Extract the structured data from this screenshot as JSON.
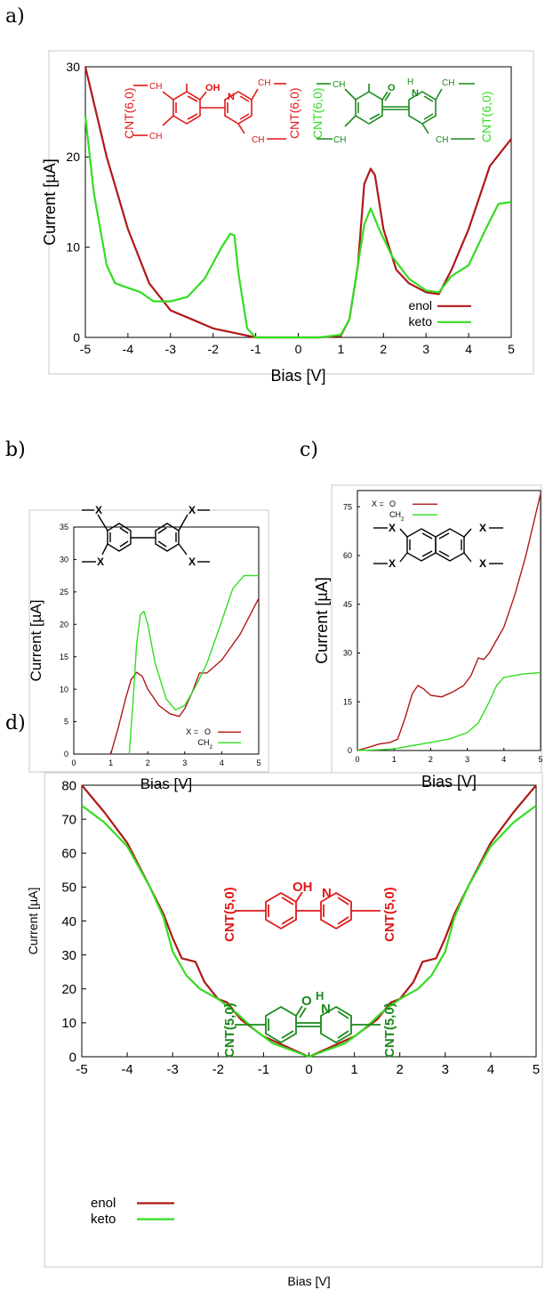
{
  "panel_labels": [
    "a)",
    "b)",
    "c)",
    "d)"
  ],
  "colors": {
    "enol": "#b01818",
    "keto": "#33dd22",
    "struct_red": "#e01818",
    "struct_green": "#1a8a1a",
    "struct_lightgreen": "#33dd22"
  },
  "chart_data": [
    {
      "id": "a",
      "type": "line",
      "xlabel": "Bias [V]",
      "ylabel": "Current [µA]",
      "xlim": [
        -5,
        5
      ],
      "ylim": [
        0,
        30
      ],
      "xticks": [
        -5,
        -4,
        -3,
        -2,
        -1,
        0,
        1,
        2,
        3,
        4,
        5
      ],
      "yticks": [
        0,
        10,
        20,
        30
      ],
      "legend": "bottom-right",
      "annotations": {
        "enol_left": "CNT(6,0)",
        "enol_right": "CNT(6,0)",
        "keto_left": "CNT(6,0)",
        "keto_right": "CNT(6,0)",
        "enol_ch2": "CH",
        "enol_oh": "OH",
        "enol_n": "N",
        "keto_o": "O",
        "keto_h": "H",
        "keto_n": "N",
        "sub2": "2"
      },
      "series": [
        {
          "name": "enol",
          "color": "#b01818",
          "x": [
            -5,
            -4.5,
            -4,
            -3.5,
            -3,
            -2.5,
            -2,
            -1.5,
            -1,
            -0.5,
            0,
            0.5,
            1,
            1.2,
            1.4,
            1.55,
            1.7,
            1.8,
            2,
            2.3,
            2.6,
            3,
            3.3,
            3.6,
            4,
            4.5,
            5
          ],
          "y": [
            30,
            20,
            12,
            6,
            3,
            2,
            1,
            0.5,
            0,
            0,
            0,
            0,
            0.2,
            2,
            8,
            17,
            18.7,
            18,
            12,
            7.5,
            6,
            5,
            4.8,
            7.5,
            12,
            19,
            22
          ]
        },
        {
          "name": "keto",
          "color": "#33dd22",
          "x": [
            -5,
            -4.8,
            -4.5,
            -4.3,
            -4,
            -3.7,
            -3.4,
            -3,
            -2.6,
            -2.2,
            -1.8,
            -1.6,
            -1.5,
            -1.4,
            -1.2,
            -1,
            -0.5,
            0,
            0.5,
            1,
            1.2,
            1.4,
            1.55,
            1.7,
            1.9,
            2.2,
            2.6,
            3,
            3.3,
            3.6,
            4,
            4.4,
            4.7,
            5
          ],
          "y": [
            24.5,
            16,
            8,
            6,
            5.5,
            5,
            4,
            4,
            4.5,
            6.5,
            10,
            11.5,
            11.3,
            7,
            1,
            0,
            0,
            0,
            0,
            0.3,
            2,
            8,
            12.5,
            14.3,
            12,
            9,
            6.5,
            5.2,
            5,
            6.8,
            8,
            12,
            14.8,
            15
          ]
        }
      ]
    },
    {
      "id": "b",
      "type": "line",
      "xlabel": "Bias [V]",
      "ylabel": "Current [µA]",
      "xlim": [
        0,
        5
      ],
      "ylim": [
        0,
        35
      ],
      "xticks": [
        0,
        1,
        2,
        3,
        4,
        5
      ],
      "yticks": [
        0,
        5,
        10,
        15,
        20,
        25,
        30,
        35
      ],
      "legend": "bottom-right",
      "legend_prefix": "X = ",
      "annotations": {
        "x": "X",
        "dash": "—"
      },
      "series": [
        {
          "name": "O",
          "color": "#b01818",
          "x": [
            1,
            1.2,
            1.4,
            1.55,
            1.7,
            1.85,
            2,
            2.3,
            2.6,
            2.85,
            3,
            3.2,
            3.4,
            3.6,
            4,
            4.5,
            5
          ],
          "y": [
            0,
            4,
            8.5,
            11.5,
            12.6,
            12,
            10,
            7.5,
            6.2,
            5.8,
            7,
            9.5,
            12.5,
            12.5,
            14.5,
            18.5,
            24
          ]
        },
        {
          "name": "CH",
          "name_sub": "2",
          "color": "#33dd22",
          "x": [
            1.5,
            1.6,
            1.7,
            1.8,
            1.9,
            2,
            2.2,
            2.5,
            2.75,
            3,
            3.3,
            3.6,
            4,
            4.3,
            4.6,
            5
          ],
          "y": [
            0,
            8,
            17,
            21.5,
            22,
            20,
            14,
            8.5,
            6.8,
            7.5,
            10.5,
            14,
            20.5,
            25.5,
            27.5,
            27.5
          ]
        }
      ]
    },
    {
      "id": "c",
      "type": "line",
      "xlabel": "Bias [V]",
      "ylabel": "Current [µA]",
      "xlim": [
        0,
        5
      ],
      "ylim": [
        0,
        80
      ],
      "xticks": [
        0,
        1,
        2,
        3,
        4,
        5
      ],
      "yticks": [
        0,
        15,
        30,
        45,
        60,
        75
      ],
      "legend": "top-left",
      "legend_prefix": "X = ",
      "annotations": {
        "x": "X"
      },
      "series": [
        {
          "name": "O",
          "color": "#b01818",
          "x": [
            0,
            0.3,
            0.6,
            0.9,
            1.1,
            1.3,
            1.5,
            1.65,
            1.8,
            2,
            2.3,
            2.6,
            2.9,
            3.1,
            3.3,
            3.45,
            3.6,
            3.8,
            4,
            4.3,
            4.6,
            5
          ],
          "y": [
            0,
            1,
            2,
            2.5,
            3.5,
            10,
            17.5,
            20,
            19,
            17,
            16.5,
            18,
            20,
            23,
            28.5,
            28,
            30,
            34,
            38,
            48,
            60,
            79
          ]
        },
        {
          "name": "CH",
          "name_sub": "2",
          "color": "#33dd22",
          "x": [
            0,
            0.5,
            1,
            1.5,
            2,
            2.5,
            3,
            3.3,
            3.6,
            3.8,
            4,
            4.5,
            5
          ],
          "y": [
            0,
            0.2,
            0.5,
            1.5,
            2.5,
            3.5,
            5.5,
            8.5,
            15,
            20,
            22.5,
            23.5,
            24
          ]
        }
      ]
    },
    {
      "id": "d",
      "type": "line",
      "xlabel": "Bias [V]",
      "ylabel": "Current [µA]",
      "xlim": [
        -5,
        5
      ],
      "ylim": [
        0,
        80
      ],
      "xticks": [
        -5,
        -4,
        -3,
        -2,
        -1,
        0,
        1,
        2,
        3,
        4,
        5
      ],
      "yticks": [
        0,
        10,
        20,
        30,
        40,
        50,
        60,
        70,
        80
      ],
      "legend": "bottom-left",
      "annotations": {
        "enol_left": "CNT(5,0)",
        "enol_right": "CNT(5,0)",
        "keto_left": "CNT(5,0)",
        "keto_right": "CNT(5,0)",
        "enol_oh": "OH",
        "enol_n": "N",
        "keto_o": "O",
        "keto_h": "H",
        "keto_n": "N"
      },
      "series": [
        {
          "name": "enol",
          "color": "#b01818",
          "x": [
            -5,
            -4.5,
            -4,
            -3.5,
            -3.2,
            -3,
            -2.8,
            -2.5,
            -2.3,
            -2,
            -1.8,
            -1.5,
            -1,
            -0.5,
            0,
            0.5,
            1,
            1.5,
            1.8,
            2,
            2.3,
            2.5,
            2.8,
            3,
            3.2,
            3.5,
            4,
            4.5,
            5
          ],
          "y": [
            80,
            72,
            63,
            50,
            42,
            35,
            29,
            28,
            22,
            17,
            16,
            11,
            6,
            3,
            0,
            3,
            6,
            11,
            16,
            17,
            22,
            28,
            29,
            35,
            42,
            50,
            63,
            72,
            80
          ]
        },
        {
          "name": "keto",
          "color": "#33dd22",
          "x": [
            -5,
            -4.5,
            -4,
            -3.5,
            -3.2,
            -3,
            -2.7,
            -2.4,
            -2,
            -1.6,
            -1.2,
            -0.8,
            -0.4,
            0,
            0.4,
            0.8,
            1.2,
            1.6,
            2,
            2.4,
            2.7,
            3,
            3.2,
            3.5,
            4,
            4.5,
            5
          ],
          "y": [
            74,
            69,
            62,
            50,
            41,
            31,
            24,
            20,
            17,
            13,
            8,
            4,
            2,
            0,
            2,
            4,
            8,
            13,
            17,
            20,
            24,
            31,
            41,
            50,
            62,
            69,
            74
          ]
        }
      ]
    }
  ]
}
